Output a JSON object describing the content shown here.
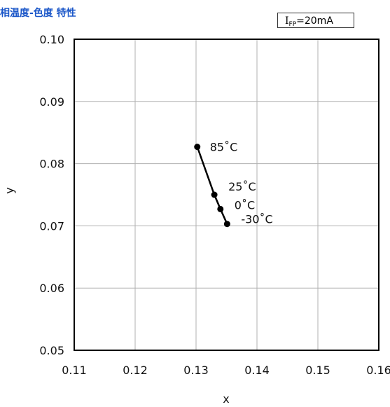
{
  "title": "相温度-色度 特性",
  "condition": {
    "symbol": "I",
    "subscript": "FP",
    "value": "=20mA"
  },
  "colors": {
    "title": "#1a56c8",
    "line": "#000000",
    "grid": "#b0b0b0"
  },
  "chart_data": {
    "type": "line",
    "title": "相温度-色度 特性",
    "xlabel": "x",
    "ylabel": "y",
    "xlim": [
      0.11,
      0.16
    ],
    "ylim": [
      0.05,
      0.1
    ],
    "x_ticks": [
      "0.11",
      "0.12",
      "0.13",
      "0.14",
      "0.15",
      "0.16"
    ],
    "y_ticks": [
      "0.10",
      "0.09",
      "0.08",
      "0.07",
      "0.06",
      "0.05"
    ],
    "grid": true,
    "series": [
      {
        "points": [
          {
            "x": 0.1302,
            "y": 0.0827,
            "label": "85˚C"
          },
          {
            "x": 0.133,
            "y": 0.075,
            "label": "25˚C"
          },
          {
            "x": 0.134,
            "y": 0.0727,
            "label": "0˚C"
          },
          {
            "x": 0.1351,
            "y": 0.0703,
            "label": "-30˚C"
          }
        ]
      }
    ]
  }
}
